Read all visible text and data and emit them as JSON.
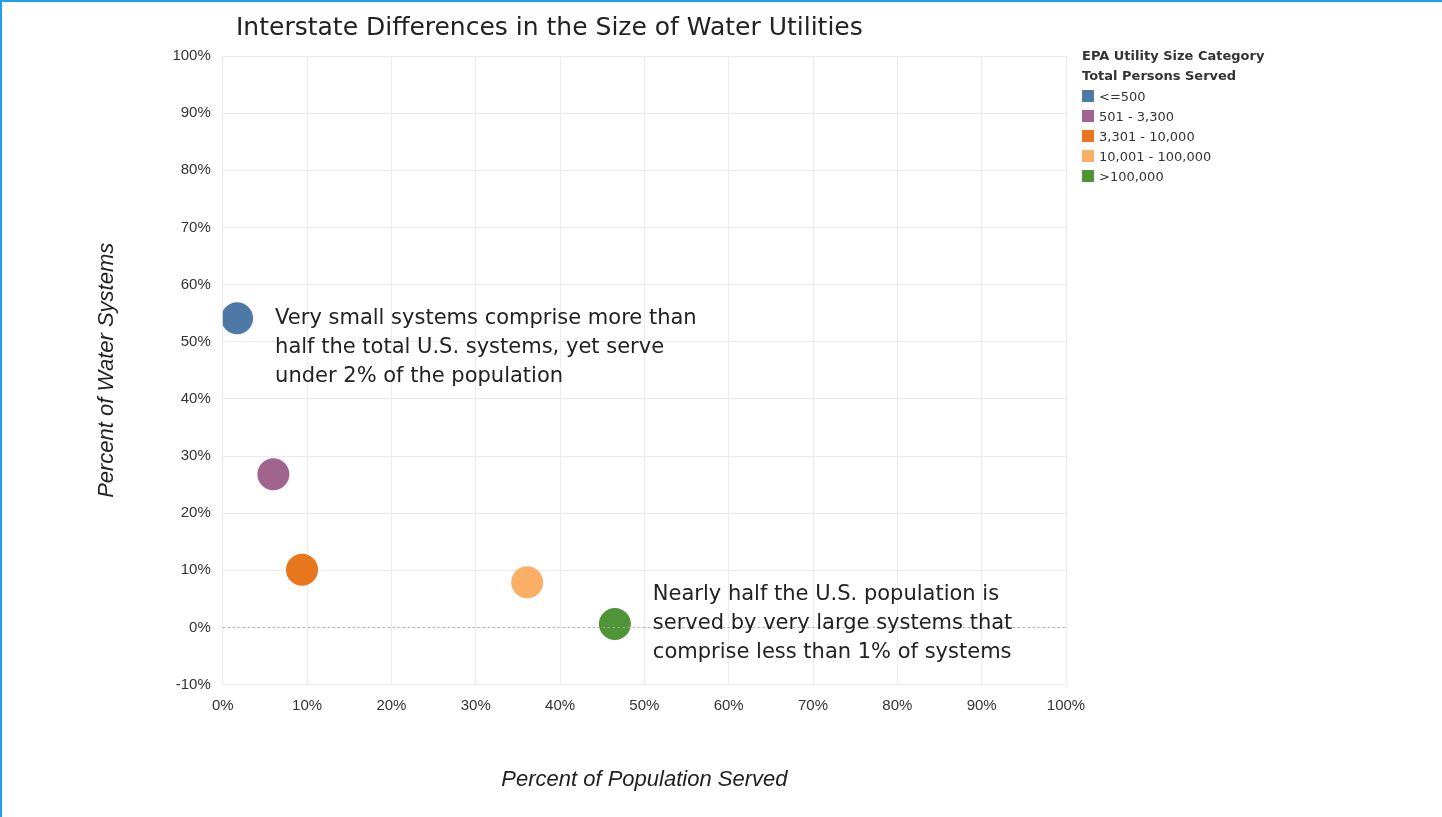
{
  "chart_data": {
    "type": "scatter",
    "title": "Interstate Differences in the Size of Water Utilities",
    "xlabel": "Percent of Population Served",
    "ylabel": "Percent of Water Systems",
    "legend_title": "EPA Utility Size Category\nTotal Persons Served",
    "legend": "top right",
    "grid": true,
    "marker": "circle",
    "xlim": [
      0,
      100
    ],
    "xticks": [
      {
        "value": 0,
        "label": "0%"
      },
      {
        "value": 10,
        "label": "10%"
      },
      {
        "value": 20,
        "label": "20%"
      },
      {
        "value": 30,
        "label": "30%"
      },
      {
        "value": 40,
        "label": "40%"
      },
      {
        "value": 50,
        "label": "50%"
      },
      {
        "value": 60,
        "label": "60%"
      },
      {
        "value": 70,
        "label": "70%"
      },
      {
        "value": 80,
        "label": "80%"
      },
      {
        "value": 90,
        "label": "90%"
      },
      {
        "value": 100,
        "label": "100%"
      }
    ],
    "ylim": [
      -10,
      100
    ],
    "yticks": [
      {
        "value": -10,
        "label": "-10%"
      },
      {
        "value": 0,
        "label": "0%"
      },
      {
        "value": 10,
        "label": "10%"
      },
      {
        "value": 20,
        "label": "20%"
      },
      {
        "value": 30,
        "label": "30%"
      },
      {
        "value": 40,
        "label": "40%"
      },
      {
        "value": 50,
        "label": "50%"
      },
      {
        "value": 60,
        "label": "60%"
      },
      {
        "value": 70,
        "label": "70%"
      },
      {
        "value": 80,
        "label": "80%"
      },
      {
        "value": 90,
        "label": "90%"
      },
      {
        "value": 100,
        "label": "100%"
      }
    ],
    "ref_lines": [
      {
        "axis": "y",
        "value": 0,
        "color": "#aaaaaa",
        "line_style": "dotted"
      }
    ],
    "series": [
      {
        "name": "<=500",
        "color": "#4e79a7",
        "x": [
          1.7
        ],
        "values": [
          54.1
        ]
      },
      {
        "name": "501 - 3,300",
        "color": "#a0648f",
        "x": [
          6.0
        ],
        "values": [
          26.8
        ]
      },
      {
        "name": "3,301 - 10,000",
        "color": "#e8761c",
        "x": [
          9.4
        ],
        "values": [
          10.1
        ]
      },
      {
        "name": "10,001 - 100,000",
        "color": "#fbae66",
        "x": [
          36.1
        ],
        "values": [
          7.9
        ]
      },
      {
        "name": ">100,000",
        "color": "#4f9538",
        "x": [
          46.5
        ],
        "values": [
          0.6
        ]
      }
    ],
    "annotations": [
      {
        "text": "Very small systems comprise more than half the total U.S. systems, yet serve under 2% of the population",
        "x": 1.7,
        "y": 54.1
      },
      {
        "text": "Nearly half the U.S. population is served by very large systems that comprise less than 1% of systems",
        "x": 46.5,
        "y": 0.6
      }
    ]
  }
}
